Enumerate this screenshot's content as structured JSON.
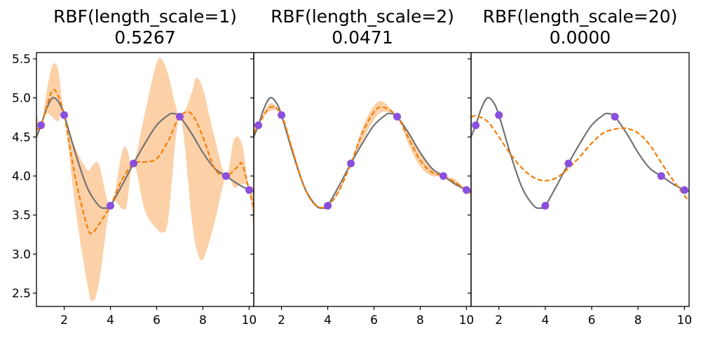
{
  "colors": {
    "true_function": "#737373",
    "posterior_mean": "#f57c00",
    "confidence_band": "#fcd1a8",
    "observations": "#8a4fde"
  },
  "chart_data": [
    {
      "type": "line",
      "title": [
        "RBF(length_scale=1)",
        "0.5267"
      ],
      "xlim": [
        0.8,
        10.2
      ],
      "ylim": [
        2.33,
        5.58
      ],
      "xticks": [
        2,
        4,
        6,
        8,
        10
      ],
      "yticks": [
        2.5,
        3.0,
        3.5,
        4.0,
        4.5,
        5.0,
        5.5
      ],
      "show_yticklabels": true,
      "grid": false,
      "series": [
        {
          "role": "true_function",
          "style": "solid",
          "x": [
            0.8,
            1.0,
            1.25,
            1.5,
            1.75,
            2.0,
            2.5,
            3.0,
            3.5,
            3.8,
            4.0,
            4.5,
            5.0,
            5.5,
            6.0,
            6.5,
            6.7,
            7.0,
            7.5,
            8.0,
            8.5,
            9.0,
            9.5,
            10.0,
            10.2
          ],
          "y": [
            4.5,
            4.65,
            4.87,
            5.0,
            4.95,
            4.78,
            4.28,
            3.85,
            3.62,
            3.59,
            3.62,
            3.88,
            4.16,
            4.42,
            4.65,
            4.78,
            4.8,
            4.76,
            4.55,
            4.3,
            4.1,
            4.0,
            3.9,
            3.82,
            3.8
          ]
        },
        {
          "role": "posterior_mean",
          "style": "dashed",
          "x": [
            0.8,
            1.0,
            1.3,
            1.5,
            1.7,
            2.0,
            2.5,
            3.0,
            3.2,
            3.5,
            4.0,
            4.5,
            5.0,
            5.5,
            6.0,
            6.5,
            7.0,
            7.5,
            8.0,
            8.5,
            9.0,
            9.5,
            9.7,
            10.0,
            10.2
          ],
          "y": [
            4.6,
            4.65,
            4.95,
            5.1,
            5.05,
            4.78,
            3.95,
            3.35,
            3.27,
            3.38,
            3.62,
            3.95,
            4.16,
            4.18,
            4.22,
            4.45,
            4.76,
            4.8,
            4.5,
            4.1,
            4.0,
            4.12,
            4.15,
            3.82,
            3.6
          ]
        },
        {
          "role": "confidence_band",
          "style": "fill",
          "x": [
            0.8,
            1.0,
            1.25,
            1.5,
            1.75,
            2.0,
            2.5,
            3.0,
            3.2,
            3.5,
            4.0,
            4.5,
            4.7,
            5.0,
            5.5,
            6.0,
            6.25,
            6.5,
            7.0,
            7.5,
            7.7,
            8.0,
            8.5,
            9.0,
            9.35,
            9.7,
            10.0,
            10.2
          ],
          "lower": [
            4.45,
            4.65,
            4.8,
            4.75,
            4.7,
            4.78,
            3.55,
            2.62,
            2.4,
            2.62,
            3.62,
            3.58,
            3.62,
            4.16,
            3.55,
            3.33,
            3.28,
            3.45,
            4.76,
            3.5,
            3.1,
            2.93,
            3.4,
            4.0,
            3.85,
            3.9,
            3.82,
            3.3
          ],
          "upper": [
            4.8,
            4.65,
            5.1,
            5.42,
            5.35,
            4.78,
            4.35,
            4.08,
            4.12,
            4.15,
            3.62,
            4.3,
            4.35,
            4.16,
            4.82,
            5.45,
            5.48,
            5.3,
            4.76,
            5.05,
            5.25,
            5.12,
            4.5,
            4.0,
            4.47,
            4.4,
            3.82,
            3.9
          ]
        }
      ],
      "points": {
        "x": [
          1,
          2,
          4,
          5,
          7,
          9,
          10
        ],
        "y": [
          4.65,
          4.78,
          3.62,
          4.16,
          4.76,
          4.0,
          3.82
        ]
      }
    },
    {
      "type": "line",
      "title": [
        "RBF(length_scale=2)",
        "0.0471"
      ],
      "xlim": [
        0.8,
        10.2
      ],
      "ylim": [
        2.33,
        5.58
      ],
      "xticks": [
        2,
        4,
        6,
        8,
        10
      ],
      "yticks": [
        2.5,
        3.0,
        3.5,
        4.0,
        4.5,
        5.0,
        5.5
      ],
      "show_yticklabels": false,
      "grid": false,
      "series": [
        {
          "role": "true_function",
          "style": "solid",
          "x": [
            0.8,
            1.0,
            1.25,
            1.5,
            1.75,
            2.0,
            2.5,
            3.0,
            3.5,
            3.8,
            4.0,
            4.5,
            5.0,
            5.5,
            6.0,
            6.5,
            6.7,
            7.0,
            7.5,
            8.0,
            8.5,
            9.0,
            9.5,
            10.0,
            10.2
          ],
          "y": [
            4.5,
            4.65,
            4.87,
            5.0,
            4.95,
            4.78,
            4.28,
            3.85,
            3.62,
            3.59,
            3.62,
            3.88,
            4.16,
            4.42,
            4.65,
            4.78,
            4.8,
            4.76,
            4.55,
            4.3,
            4.1,
            4.0,
            3.9,
            3.82,
            3.8
          ]
        },
        {
          "role": "posterior_mean",
          "style": "dashed",
          "x": [
            0.8,
            1.0,
            1.5,
            2.0,
            2.5,
            3.0,
            3.5,
            4.0,
            4.5,
            5.0,
            5.5,
            6.0,
            6.4,
            7.0,
            7.5,
            8.0,
            8.5,
            9.0,
            9.5,
            10.0,
            10.2
          ],
          "y": [
            4.55,
            4.65,
            4.88,
            4.78,
            4.3,
            3.85,
            3.62,
            3.62,
            3.82,
            4.16,
            4.55,
            4.82,
            4.88,
            4.76,
            4.48,
            4.2,
            4.05,
            4.0,
            3.92,
            3.82,
            3.78
          ]
        },
        {
          "role": "confidence_band",
          "style": "fill",
          "x": [
            0.8,
            1.0,
            1.5,
            2.0,
            2.5,
            3.0,
            3.5,
            4.0,
            4.5,
            5.0,
            5.5,
            6.0,
            6.4,
            7.0,
            7.5,
            8.0,
            8.5,
            9.0,
            9.5,
            10.0,
            10.2
          ],
          "lower": [
            4.45,
            4.65,
            4.83,
            4.78,
            4.25,
            3.82,
            3.6,
            3.62,
            3.8,
            4.16,
            4.45,
            4.72,
            4.82,
            4.76,
            4.4,
            4.12,
            4.0,
            4.0,
            3.88,
            3.82,
            3.74
          ],
          "upper": [
            4.65,
            4.65,
            4.93,
            4.78,
            4.35,
            3.88,
            3.64,
            3.62,
            3.84,
            4.16,
            4.62,
            4.9,
            4.95,
            4.76,
            4.55,
            4.28,
            4.1,
            4.0,
            3.96,
            3.82,
            3.82
          ]
        }
      ],
      "points": {
        "x": [
          1,
          2,
          4,
          5,
          7,
          9,
          10
        ],
        "y": [
          4.65,
          4.78,
          3.62,
          4.16,
          4.76,
          4.0,
          3.82
        ]
      }
    },
    {
      "type": "line",
      "title": [
        "RBF(length_scale=20)",
        "0.0000"
      ],
      "xlim": [
        0.8,
        10.2
      ],
      "ylim": [
        2.33,
        5.58
      ],
      "xticks": [
        2,
        4,
        6,
        8,
        10
      ],
      "yticks": [
        2.5,
        3.0,
        3.5,
        4.0,
        4.5,
        5.0,
        5.5
      ],
      "show_yticklabels": false,
      "grid": false,
      "series": [
        {
          "role": "true_function",
          "style": "solid",
          "x": [
            0.8,
            1.0,
            1.25,
            1.5,
            1.75,
            2.0,
            2.5,
            3.0,
            3.5,
            3.8,
            4.0,
            4.5,
            5.0,
            5.5,
            6.0,
            6.5,
            6.7,
            7.0,
            7.5,
            8.0,
            8.5,
            9.0,
            9.5,
            10.0,
            10.2
          ],
          "y": [
            4.5,
            4.65,
            4.87,
            5.0,
            4.95,
            4.78,
            4.28,
            3.85,
            3.62,
            3.59,
            3.62,
            3.88,
            4.16,
            4.42,
            4.65,
            4.78,
            4.8,
            4.76,
            4.55,
            4.3,
            4.1,
            4.0,
            3.9,
            3.82,
            3.8
          ]
        },
        {
          "role": "posterior_mean",
          "style": "dashed",
          "x": [
            0.8,
            1.0,
            1.5,
            2.0,
            2.5,
            3.0,
            3.5,
            4.0,
            4.5,
            5.0,
            5.5,
            6.0,
            6.5,
            7.0,
            7.5,
            8.0,
            8.5,
            9.0,
            9.5,
            10.0,
            10.2
          ],
          "y": [
            4.75,
            4.77,
            4.7,
            4.5,
            4.28,
            4.1,
            3.98,
            3.94,
            3.98,
            4.1,
            4.25,
            4.42,
            4.55,
            4.6,
            4.61,
            4.55,
            4.4,
            4.17,
            3.95,
            3.75,
            3.68
          ]
        }
      ],
      "points": {
        "x": [
          1,
          2,
          4,
          5,
          7,
          9,
          10
        ],
        "y": [
          4.65,
          4.78,
          3.62,
          4.16,
          4.76,
          4.0,
          3.82
        ]
      }
    }
  ]
}
